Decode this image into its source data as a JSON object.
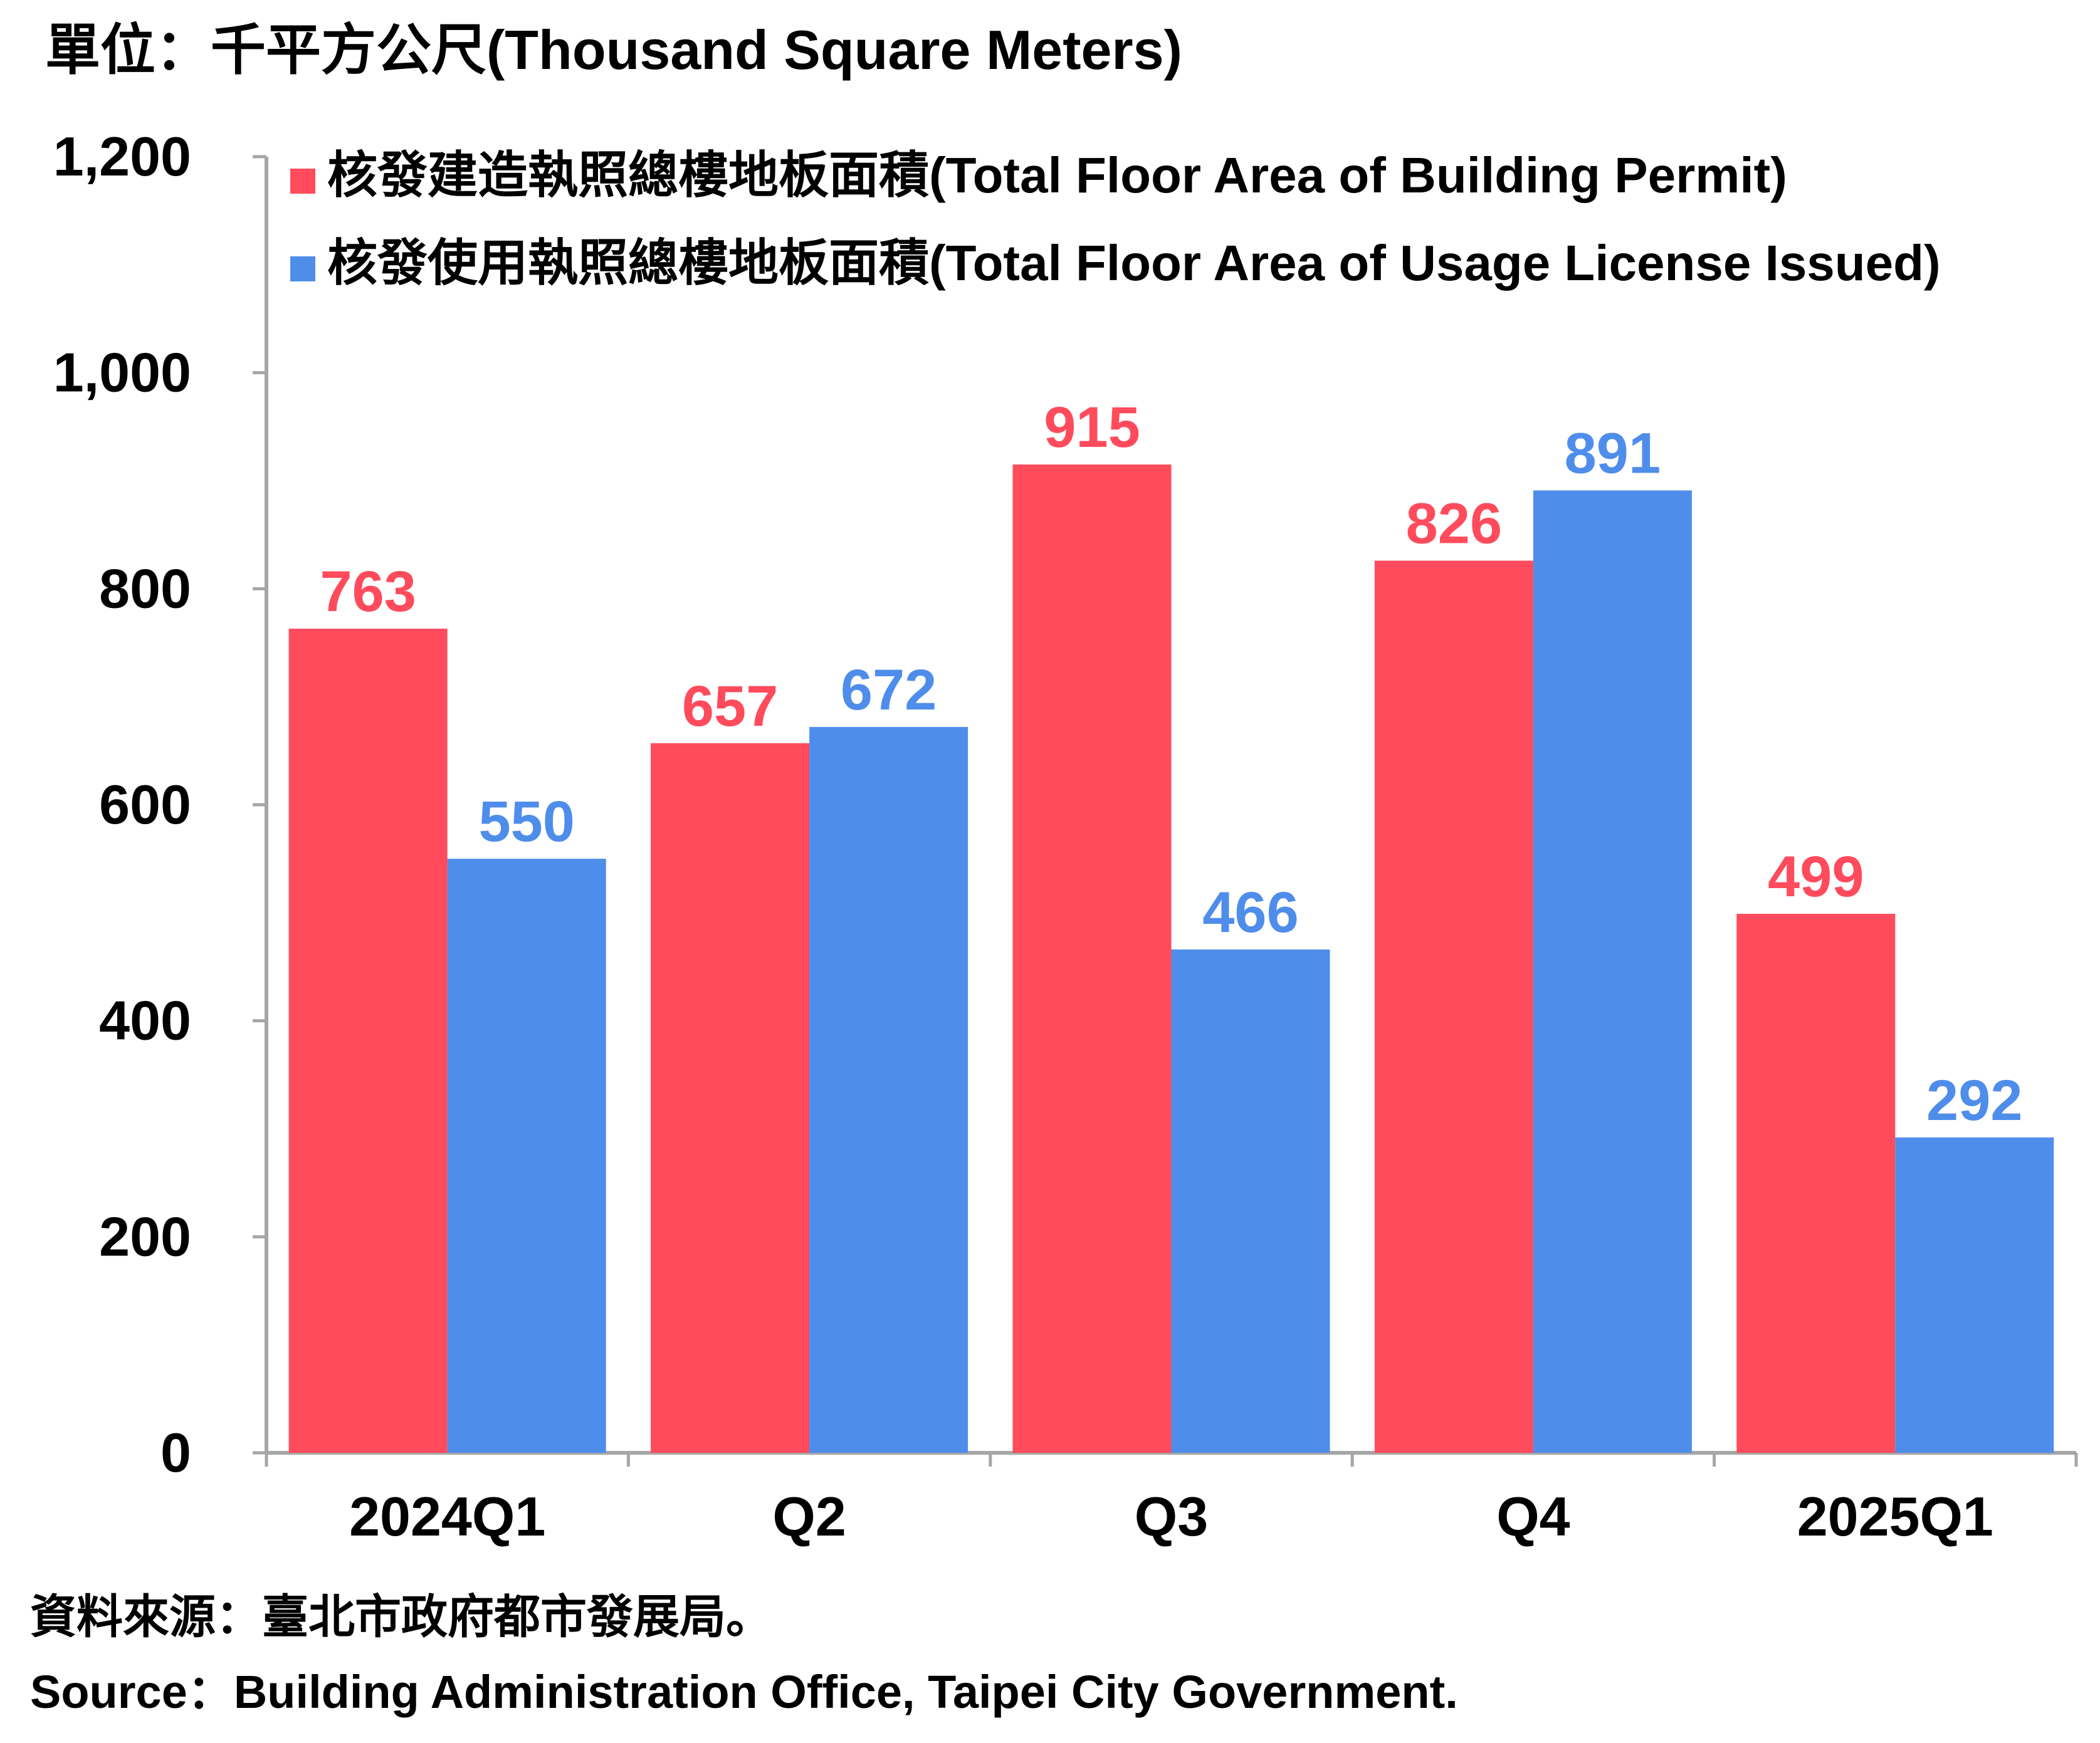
{
  "unit_label": "單位：千平方公尺(Thousand Square Meters)",
  "source_zh": "資料來源：臺北市政府都市發展局。",
  "source_en": "Source：Building Administration Office, Taipei City Government.",
  "colors": {
    "permit": "#FF4B5C",
    "usage": "#4F8DEB",
    "axis": "#A6A6A6",
    "text": "#000000"
  },
  "chart_data": {
    "type": "bar",
    "categories": [
      "2024Q1",
      "Q2",
      "Q3",
      "Q4",
      "2025Q1"
    ],
    "series": [
      {
        "name": "核發建造執照總樓地板面積(Total Floor Area of Building Permit)",
        "values": [
          763,
          657,
          915,
          826,
          499
        ]
      },
      {
        "name": "核發使用執照總樓地板面積(Total Floor Area of Usage License Issued)",
        "values": [
          550,
          672,
          466,
          891,
          292
        ]
      }
    ],
    "y_ticks": [
      "0",
      "200",
      "400",
      "600",
      "800",
      "1,000",
      "1,200"
    ],
    "ylim": [
      0,
      1200
    ],
    "grid": false,
    "legend_position": "top-left",
    "data_labels": true
  }
}
